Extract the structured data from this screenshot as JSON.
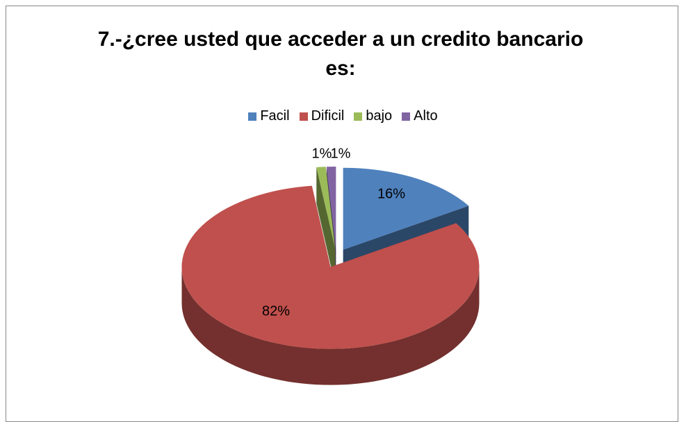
{
  "chart_data": {
    "type": "pie",
    "title": "7.-¿cree usted que acceder a un credito bancario es:",
    "categories": [
      "Facil",
      "Dificil",
      "bajo",
      "Alto"
    ],
    "values": [
      16,
      82,
      1,
      1
    ],
    "value_labels": [
      "16%",
      "82%",
      "1%",
      "1%"
    ],
    "colors": [
      "#4f81bd",
      "#c0504d",
      "#9bbb59",
      "#8064a2"
    ],
    "legend": "top",
    "style": "3d-exploded"
  }
}
